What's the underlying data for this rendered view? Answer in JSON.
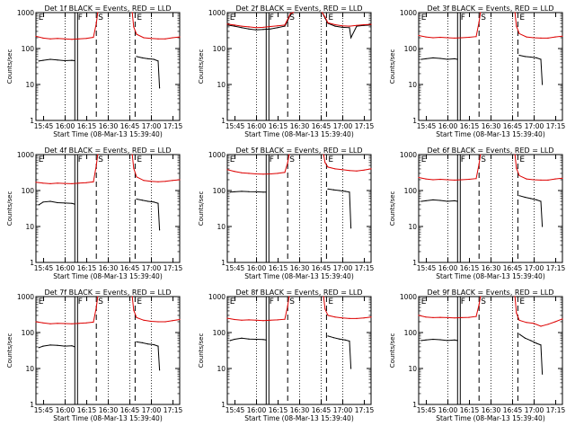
{
  "chart_data": {
    "type": "line",
    "grid_layout": "3x3",
    "x_axis": {
      "title": "Start Time (08-Mar-13 15:39:40)",
      "range_minutes": [
        0,
        100
      ],
      "tick_labels": [
        "15:45",
        "16:00",
        "16:15",
        "16:30",
        "16:45",
        "17:00",
        "17:15"
      ],
      "tick_values_minutes": [
        5.33,
        20.33,
        35.33,
        50.33,
        65.33,
        80.33,
        95.33
      ]
    },
    "y_axis": {
      "title": "Counts/sec",
      "scale": "log",
      "range": [
        1,
        1000
      ],
      "tick_labels": [
        "1",
        "10",
        "100",
        "1000"
      ],
      "tick_values": [
        1,
        10,
        100,
        1000
      ]
    },
    "legend": {
      "black_label": "Events",
      "red_label": "LLD"
    },
    "markers": [
      {
        "label": "E",
        "x_minutes": 0.5,
        "style": "text"
      },
      {
        "label": "F",
        "x_minutes": 28,
        "style": "double-solid"
      },
      {
        "label": "S",
        "x_minutes": 42,
        "style": "dashed"
      },
      {
        "label": "E",
        "x_minutes": 69,
        "style": "dashed"
      }
    ],
    "panels": [
      {
        "title": "Det 1f BLACK = Events, RED = LLD",
        "series": [
          {
            "name": "Events",
            "color": "#000000",
            "x": [
              2,
              5,
              10,
              15,
              20,
              25,
              27,
              70,
              74,
              78,
              82,
              85,
              86
            ],
            "values": [
              45,
              47,
              50,
              48,
              46,
              47,
              46,
              60,
              55,
              52,
              50,
              45,
              8
            ]
          },
          {
            "name": "LLD",
            "color": "#dd0000",
            "x": [
              0,
              5,
              10,
              15,
              20,
              25,
              30,
              35,
              40,
              42,
              43,
              67,
              68,
              70,
              75,
              80,
              85,
              90,
              95,
              100
            ],
            "values": [
              220,
              195,
              185,
              190,
              185,
              180,
              185,
              190,
              205,
              500,
              1000,
              1000,
              400,
              250,
              200,
              190,
              185,
              185,
              200,
              210
            ]
          }
        ]
      },
      {
        "title": "Det 2f BLACK = Events, RED = LLD",
        "series": [
          {
            "name": "Events",
            "color": "#000000",
            "x": [
              0,
              5,
              10,
              15,
              20,
              25,
              30,
              35,
              40,
              42,
              44,
              46,
              66,
              68,
              70,
              75,
              80,
              85,
              86,
              90,
              95,
              100
            ],
            "values": [
              450,
              420,
              380,
              350,
              330,
              340,
              350,
              380,
              420,
              600,
              900,
              1000,
              1000,
              700,
              500,
              420,
              390,
              380,
              200,
              420,
              440,
              450
            ]
          },
          {
            "name": "LLD",
            "color": "#dd0000",
            "x": [
              0,
              5,
              10,
              15,
              20,
              25,
              30,
              35,
              40,
              42,
              44,
              46,
              66,
              68,
              70,
              75,
              80,
              85,
              90,
              95,
              100
            ],
            "values": [
              480,
              450,
              420,
              400,
              380,
              390,
              410,
              430,
              450,
              650,
              950,
              1000,
              1000,
              750,
              520,
              460,
              430,
              420,
              440,
              460,
              470
            ]
          }
        ]
      },
      {
        "title": "Det 3f BLACK = Events, RED = LLD",
        "series": [
          {
            "name": "Events",
            "color": "#000000",
            "x": [
              2,
              5,
              10,
              15,
              20,
              25,
              27,
              70,
              74,
              78,
              82,
              85,
              86
            ],
            "values": [
              50,
              52,
              55,
              53,
              50,
              52,
              50,
              65,
              60,
              58,
              55,
              50,
              10
            ]
          },
          {
            "name": "LLD",
            "color": "#dd0000",
            "x": [
              0,
              5,
              10,
              15,
              20,
              25,
              30,
              35,
              40,
              42,
              43,
              67,
              68,
              70,
              75,
              80,
              85,
              90,
              95,
              100
            ],
            "values": [
              230,
              210,
              200,
              205,
              200,
              195,
              200,
              205,
              215,
              550,
              1000,
              1000,
              420,
              260,
              210,
              200,
              195,
              195,
              210,
              220
            ]
          }
        ]
      },
      {
        "title": "Det 4f BLACK = Events, RED = LLD",
        "series": [
          {
            "name": "Events",
            "color": "#000000",
            "x": [
              2,
              5,
              10,
              15,
              20,
              25,
              27,
              70,
              74,
              78,
              82,
              85,
              86
            ],
            "values": [
              40,
              48,
              50,
              46,
              45,
              44,
              42,
              58,
              54,
              50,
              48,
              44,
              8
            ]
          },
          {
            "name": "LLD",
            "color": "#dd0000",
            "x": [
              0,
              5,
              10,
              15,
              20,
              25,
              30,
              35,
              40,
              42,
              43,
              67,
              68,
              70,
              75,
              80,
              85,
              90,
              95,
              100
            ],
            "values": [
              170,
              160,
              155,
              160,
              158,
              155,
              160,
              165,
              175,
              500,
              1000,
              1000,
              420,
              240,
              190,
              180,
              175,
              180,
              190,
              200
            ]
          }
        ]
      },
      {
        "title": "Det 5f BLACK = Events, RED = LLD",
        "series": [
          {
            "name": "Events",
            "color": "#000000",
            "x": [
              2,
              5,
              10,
              15,
              20,
              25,
              27,
              70,
              74,
              78,
              82,
              85,
              86
            ],
            "values": [
              90,
              92,
              95,
              93,
              92,
              90,
              90,
              110,
              105,
              100,
              95,
              90,
              9
            ]
          },
          {
            "name": "LLD",
            "color": "#dd0000",
            "x": [
              0,
              5,
              10,
              15,
              20,
              25,
              30,
              35,
              40,
              42,
              43,
              67,
              68,
              70,
              75,
              80,
              85,
              90,
              95,
              100
            ],
            "values": [
              380,
              340,
              310,
              300,
              290,
              285,
              290,
              300,
              320,
              600,
              1000,
              1000,
              600,
              450,
              400,
              380,
              360,
              350,
              370,
              400
            ]
          }
        ]
      },
      {
        "title": "Det 6f BLACK = Events, RED = LLD",
        "series": [
          {
            "name": "Events",
            "color": "#000000",
            "x": [
              2,
              5,
              10,
              15,
              20,
              25,
              27,
              70,
              74,
              78,
              82,
              85,
              86
            ],
            "values": [
              50,
              52,
              55,
              53,
              50,
              52,
              50,
              72,
              65,
              60,
              55,
              50,
              10
            ]
          },
          {
            "name": "LLD",
            "color": "#dd0000",
            "x": [
              0,
              5,
              10,
              15,
              20,
              25,
              30,
              35,
              40,
              42,
              43,
              67,
              68,
              70,
              75,
              80,
              85,
              90,
              95,
              100
            ],
            "values": [
              230,
              210,
              200,
              205,
              200,
              195,
              200,
              205,
              215,
              550,
              1000,
              1000,
              420,
              260,
              210,
              200,
              195,
              195,
              210,
              220
            ]
          }
        ]
      },
      {
        "title": "Det 7f BLACK = Events, RED = LLD",
        "series": [
          {
            "name": "Events",
            "color": "#000000",
            "x": [
              2,
              5,
              10,
              15,
              20,
              25,
              27,
              70,
              74,
              78,
              82,
              85,
              86
            ],
            "values": [
              38,
              42,
              45,
              44,
              42,
              43,
              40,
              55,
              52,
              48,
              46,
              42,
              9
            ]
          },
          {
            "name": "LLD",
            "color": "#dd0000",
            "x": [
              0,
              5,
              10,
              15,
              20,
              25,
              30,
              35,
              40,
              42,
              43,
              67,
              68,
              70,
              75,
              80,
              85,
              90,
              95,
              100
            ],
            "values": [
              200,
              185,
              175,
              180,
              178,
              175,
              180,
              185,
              195,
              500,
              1000,
              1000,
              420,
              260,
              220,
              205,
              200,
              200,
              215,
              230
            ]
          }
        ]
      },
      {
        "title": "Det 8f BLACK = Events, RED = LLD",
        "series": [
          {
            "name": "Events",
            "color": "#000000",
            "x": [
              2,
              5,
              10,
              15,
              20,
              25,
              27,
              70,
              74,
              78,
              82,
              85,
              86
            ],
            "values": [
              60,
              65,
              70,
              66,
              65,
              64,
              62,
              80,
              72,
              66,
              62,
              58,
              10
            ]
          },
          {
            "name": "LLD",
            "color": "#dd0000",
            "x": [
              0,
              5,
              10,
              15,
              20,
              25,
              30,
              35,
              40,
              42,
              43,
              67,
              68,
              70,
              75,
              80,
              85,
              90,
              95,
              100
            ],
            "values": [
              250,
              230,
              220,
              225,
              220,
              215,
              220,
              225,
              235,
              550,
              1000,
              1000,
              450,
              300,
              270,
              255,
              245,
              245,
              255,
              270
            ]
          }
        ]
      },
      {
        "title": "Det 9f BLACK = Events, RED = LLD",
        "series": [
          {
            "name": "Events",
            "color": "#000000",
            "x": [
              2,
              5,
              10,
              15,
              20,
              25,
              27,
              70,
              74,
              78,
              82,
              85,
              86
            ],
            "values": [
              60,
              62,
              65,
              63,
              60,
              62,
              60,
              90,
              70,
              60,
              50,
              45,
              7
            ]
          },
          {
            "name": "LLD",
            "color": "#dd0000",
            "x": [
              0,
              5,
              10,
              15,
              20,
              25,
              30,
              35,
              40,
              42,
              43,
              67,
              68,
              70,
              75,
              80,
              85,
              90,
              95,
              100
            ],
            "values": [
              300,
              270,
              260,
              265,
              260,
              255,
              260,
              265,
              280,
              600,
              1000,
              1000,
              350,
              220,
              190,
              180,
              150,
              170,
              200,
              240
            ]
          }
        ]
      }
    ]
  }
}
